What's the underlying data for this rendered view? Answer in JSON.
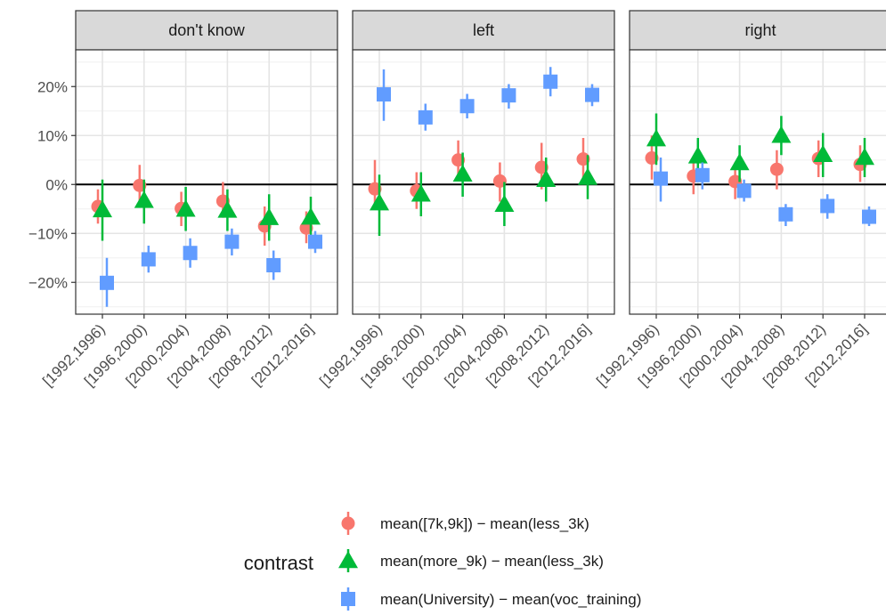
{
  "chart_data": {
    "type": "scatter",
    "facets": [
      "don't know",
      "left",
      "right"
    ],
    "categories": [
      "[1992,1996)",
      "[1996,2000)",
      "[2000,2004)",
      "[2004,2008)",
      "[2008,2012)",
      "[2012,2016]"
    ],
    "y_ticks": [
      "20%",
      "10%",
      "0%",
      "−10%",
      "−20%"
    ],
    "y_tick_values": [
      20,
      10,
      0,
      -10,
      -20
    ],
    "ylim": [
      -26.5,
      27.5
    ],
    "grid": true,
    "reference_line": 0,
    "legend": {
      "title": "contrast",
      "position": "bottom",
      "entries": [
        "mean([7k,9k]) − mean(less_3k)",
        "mean(more_9k) − mean(less_3k)",
        "mean(University) − mean(voc_training)"
      ]
    },
    "series": [
      {
        "name": "mean([7k,9k]) − mean(less_3k)",
        "color": "#F8766D",
        "marker": "circle",
        "panels": [
          {
            "facet": "don't know",
            "values": [
              -4.5,
              -0.2,
              -4.9,
              -3.4,
              -8.5,
              -8.9
            ],
            "lower": [
              -8.0,
              -4.0,
              -8.5,
              -6.8,
              -12.5,
              -12.0
            ],
            "upper": [
              -1.0,
              4.0,
              -1.5,
              0.5,
              -4.5,
              -5.5
            ]
          },
          {
            "facet": "left",
            "values": [
              -0.9,
              -1.3,
              5.0,
              0.7,
              3.5,
              5.2
            ],
            "lower": [
              -5.0,
              -5.0,
              1.0,
              -3.5,
              -1.0,
              1.0
            ],
            "upper": [
              5.0,
              2.5,
              9.0,
              4.5,
              8.5,
              9.5
            ]
          },
          {
            "facet": "right",
            "values": [
              5.4,
              1.7,
              0.6,
              3.1,
              5.3,
              4.1
            ],
            "lower": [
              1.0,
              -2.0,
              -3.0,
              -1.0,
              1.5,
              0.5
            ],
            "upper": [
              10.0,
              5.5,
              4.5,
              7.0,
              9.0,
              8.0
            ]
          }
        ]
      },
      {
        "name": "mean(more_9k) − mean(less_3k)",
        "color": "#00BA38",
        "marker": "triangle",
        "panels": [
          {
            "facet": "don't know",
            "values": [
              -5.2,
              -3.3,
              -5.1,
              -5.3,
              -6.8,
              -6.7
            ],
            "lower": [
              -11.5,
              -8.0,
              -9.5,
              -9.5,
              -11.5,
              -10.5
            ],
            "upper": [
              1.0,
              1.0,
              -0.5,
              -1.0,
              -2.0,
              -2.5
            ]
          },
          {
            "facet": "left",
            "values": [
              -3.8,
              -2.0,
              2.1,
              -4.1,
              1.0,
              1.4
            ],
            "lower": [
              -10.5,
              -6.5,
              -2.5,
              -8.5,
              -3.5,
              -3.0
            ],
            "upper": [
              2.0,
              2.5,
              6.5,
              0.5,
              5.5,
              6.0
            ]
          },
          {
            "facet": "right",
            "values": [
              9.3,
              5.8,
              4.4,
              10.0,
              6.1,
              5.5
            ],
            "lower": [
              4.0,
              2.0,
              0.5,
              6.0,
              1.5,
              1.5
            ],
            "upper": [
              14.5,
              9.5,
              8.0,
              14.0,
              10.5,
              9.5
            ]
          }
        ]
      },
      {
        "name": "mean(University) − mean(voc_training)",
        "color": "#619CFF",
        "marker": "square",
        "panels": [
          {
            "facet": "don't know",
            "values": [
              -20.1,
              -15.3,
              -14.0,
              -11.7,
              -16.5,
              -11.7
            ],
            "lower": [
              -25.0,
              -18.0,
              -17.0,
              -14.5,
              -19.5,
              -14.0
            ],
            "upper": [
              -15.0,
              -12.5,
              -11.0,
              -9.0,
              -13.5,
              -9.5
            ]
          },
          {
            "facet": "left",
            "values": [
              18.4,
              13.7,
              16.0,
              18.2,
              21.0,
              18.3
            ],
            "lower": [
              13.0,
              11.0,
              13.5,
              15.5,
              18.0,
              16.0
            ],
            "upper": [
              23.5,
              16.5,
              18.5,
              20.5,
              24.0,
              20.5
            ]
          },
          {
            "facet": "right",
            "values": [
              1.2,
              1.9,
              -1.3,
              -6.1,
              -4.4,
              -6.6
            ],
            "lower": [
              -3.5,
              -1.0,
              -3.5,
              -8.5,
              -7.0,
              -8.5
            ],
            "upper": [
              5.5,
              4.5,
              1.0,
              -4.0,
              -2.0,
              -4.5
            ]
          }
        ]
      }
    ]
  }
}
